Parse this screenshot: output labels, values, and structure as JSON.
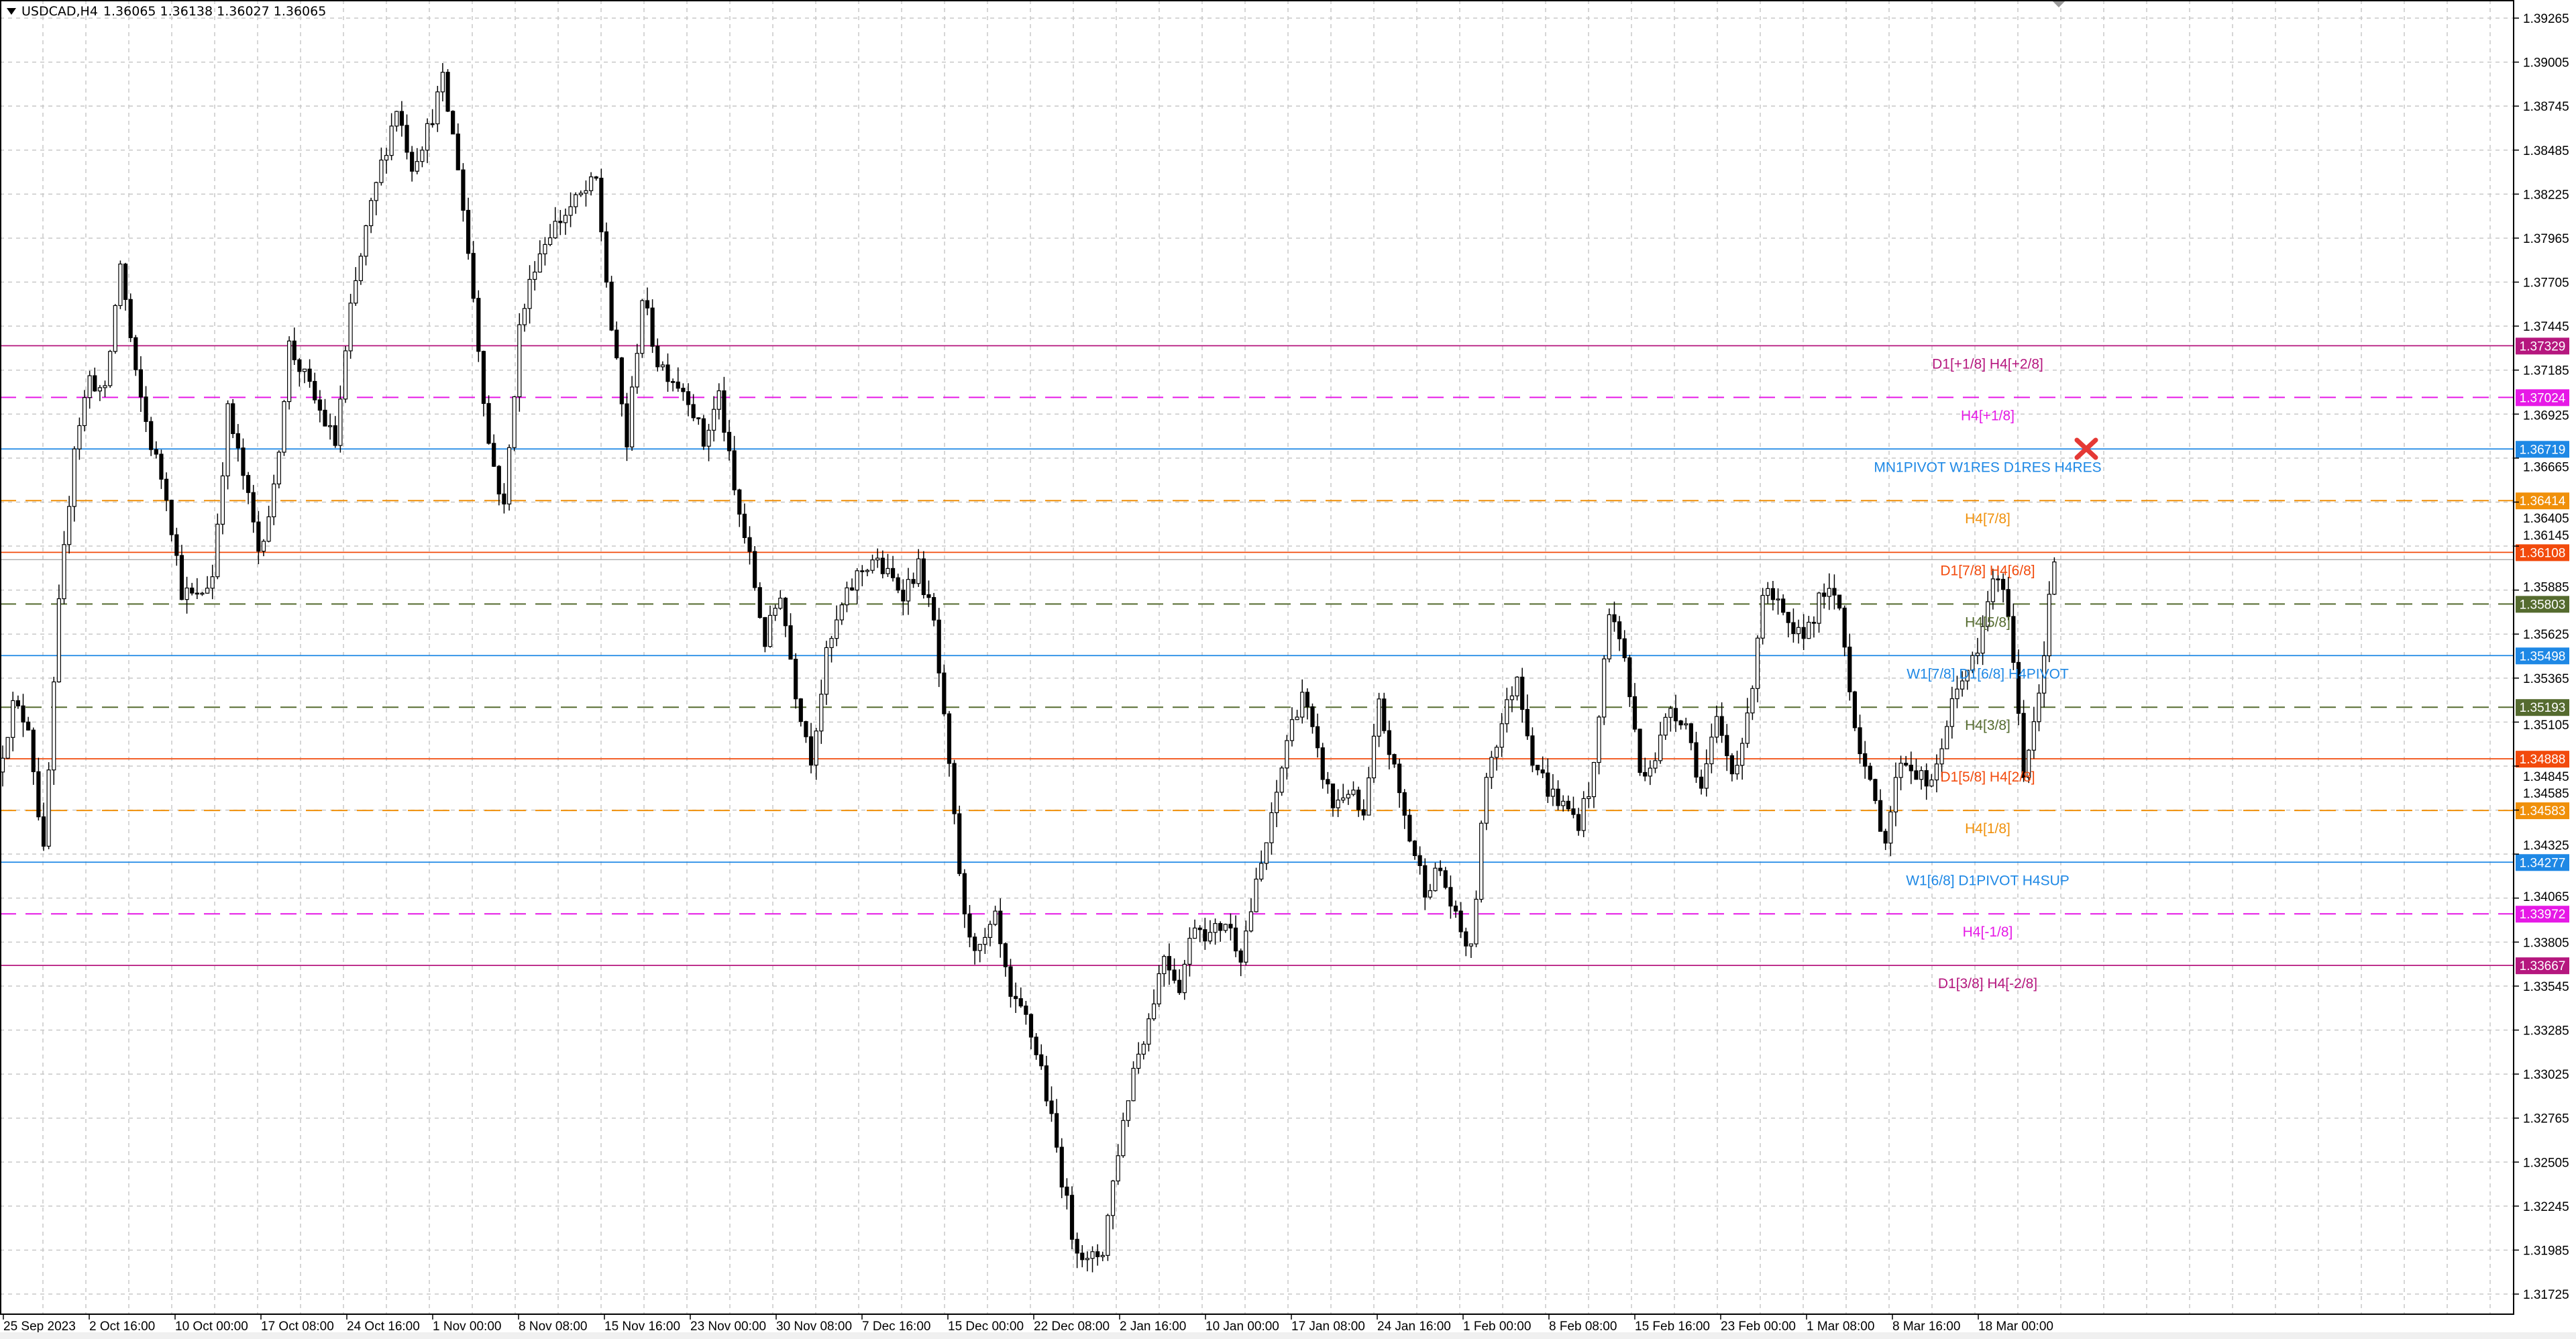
{
  "header": {
    "symbol": "USDCAD,H4",
    "ohlc": "1.36065 1.36138 1.36027 1.36065"
  },
  "chart_data": {
    "type": "candlestick",
    "symbol": "USDCAD",
    "timeframe": "H4",
    "current_price": 1.36065,
    "ylim": [
      1.316,
      1.3937
    ],
    "grid": true,
    "y_ticks": [
      "1.39265",
      "1.39005",
      "1.38745",
      "1.38485",
      "1.38225",
      "1.37965",
      "1.37705",
      "1.37445",
      "1.37185",
      "1.36925",
      "1.36665",
      "1.36405",
      "1.36145",
      "1.35885",
      "1.35625",
      "1.35365",
      "1.35105",
      "1.34845",
      "1.34585",
      "1.34325",
      "1.34065",
      "1.33805",
      "1.33545",
      "1.33285",
      "1.33025",
      "1.32765",
      "1.32505",
      "1.32245",
      "1.31985",
      "1.31725"
    ],
    "x_ticks": [
      "25 Sep 2023",
      "2 Oct 16:00",
      "10 Oct 00:00",
      "17 Oct 08:00",
      "24 Oct 16:00",
      "1 Nov 00:00",
      "8 Nov 08:00",
      "15 Nov 16:00",
      "23 Nov 00:00",
      "30 Nov 08:00",
      "7 Dec 16:00",
      "15 Dec 00:00",
      "22 Dec 08:00",
      "2 Jan 16:00",
      "10 Jan 00:00",
      "17 Jan 08:00",
      "24 Jan 16:00",
      "1 Feb 00:00",
      "8 Feb 08:00",
      "15 Feb 16:00",
      "23 Feb 00:00",
      "1 Mar 08:00",
      "8 Mar 16:00",
      "18 Mar 00:00"
    ],
    "approx_closes": [
      1.3481,
      1.352,
      1.351,
      1.3432,
      1.3578,
      1.3675,
      1.3714,
      1.3704,
      1.3782,
      1.3714,
      1.3675,
      1.3646,
      1.3588,
      1.3583,
      1.3597,
      1.3694,
      1.3656,
      1.3612,
      1.3646,
      1.3733,
      1.3714,
      1.3694,
      1.3675,
      1.3753,
      1.3801,
      1.384,
      1.3874,
      1.384,
      1.386,
      1.3889,
      1.384,
      1.3762,
      1.3675,
      1.3636,
      1.3743,
      1.3782,
      1.3801,
      1.3811,
      1.3821,
      1.383,
      1.3743,
      1.3675,
      1.3762,
      1.3724,
      1.3714,
      1.3704,
      1.3675,
      1.3704,
      1.3646,
      1.3607,
      1.3558,
      1.3588,
      1.3529,
      1.349,
      1.3549,
      1.3578,
      1.3597,
      1.3607,
      1.3597,
      1.3588,
      1.3602,
      1.3568,
      1.3481,
      1.3393,
      1.3374,
      1.3393,
      1.3345,
      1.3335,
      1.3306,
      1.3258,
      1.3209,
      1.319,
      1.3199,
      1.3258,
      1.3306,
      1.3335,
      1.3374,
      1.3355,
      1.3393,
      1.3384,
      1.3393,
      1.3374,
      1.3413,
      1.3452,
      1.35,
      1.3529,
      1.349,
      1.3461,
      1.3471,
      1.3452,
      1.352,
      1.3481,
      1.3442,
      1.3413,
      1.3423,
      1.3393,
      1.3374,
      1.3481,
      1.351,
      1.3539,
      1.349,
      1.3471,
      1.3461,
      1.3452,
      1.3481,
      1.3578,
      1.3549,
      1.3481,
      1.349,
      1.352,
      1.351,
      1.3471,
      1.351,
      1.3481,
      1.351,
      1.3588,
      1.3578,
      1.3558,
      1.3568,
      1.3588,
      1.3578,
      1.351,
      1.3471,
      1.3442,
      1.349,
      1.3481,
      1.3471,
      1.351,
      1.3539,
      1.3549,
      1.3597,
      1.3578,
      1.3481,
      1.3529,
      1.3607
    ],
    "levels": [
      {
        "price": 1.37329,
        "price_label": "1.37329",
        "label": "D1[+1/8] H4[+2/8]",
        "color": "#b5177e",
        "style": "solid"
      },
      {
        "price": 1.37024,
        "price_label": "1.37024",
        "label": "H4[+1/8]",
        "color": "#e619e6",
        "style": "dashed"
      },
      {
        "price": 1.36719,
        "price_label": "1.36719",
        "label": "MN1PIVOT W1RES D1RES H4RES",
        "color": "#1e88e5",
        "style": "solid"
      },
      {
        "price": 1.36414,
        "price_label": "1.36414",
        "label": "H4[7/8]",
        "color": "#f0900a",
        "style": "dashed"
      },
      {
        "price": 1.36108,
        "price_label": "1.36108",
        "label": "D1[7/8] H4[6/8]",
        "color": "#f24a0c",
        "style": "solid"
      },
      {
        "price": 1.35803,
        "price_label": "1.35803",
        "label": "H4[5/8]",
        "color": "#556b2f",
        "style": "dashed"
      },
      {
        "price": 1.35498,
        "price_label": "1.35498",
        "label": "W1[7/8] D1[6/8] H4PIVOT",
        "color": "#1e88e5",
        "style": "solid"
      },
      {
        "price": 1.35193,
        "price_label": "1.35193",
        "label": "H4[3/8]",
        "color": "#556b2f",
        "style": "dashed"
      },
      {
        "price": 1.34888,
        "price_label": "1.34888",
        "label": "D1[5/8] H4[2/8]",
        "color": "#f24a0c",
        "style": "solid"
      },
      {
        "price": 1.34583,
        "price_label": "1.34583",
        "label": "H4[1/8]",
        "color": "#f0900a",
        "style": "dashed"
      },
      {
        "price": 1.34277,
        "price_label": "1.34277",
        "label": "W1[6/8] D1PIVOT H4SUP",
        "color": "#1e88e5",
        "style": "solid"
      },
      {
        "price": 1.33972,
        "price_label": "1.33972",
        "label": "H4[-1/8]",
        "color": "#e619e6",
        "style": "dashed"
      },
      {
        "price": 1.33667,
        "price_label": "1.33667",
        "label": "D1[3/8] H4[-2/8]",
        "color": "#b5177e",
        "style": "solid"
      }
    ],
    "marker": {
      "icon": "red-x-icon",
      "color": "#e53935"
    }
  }
}
